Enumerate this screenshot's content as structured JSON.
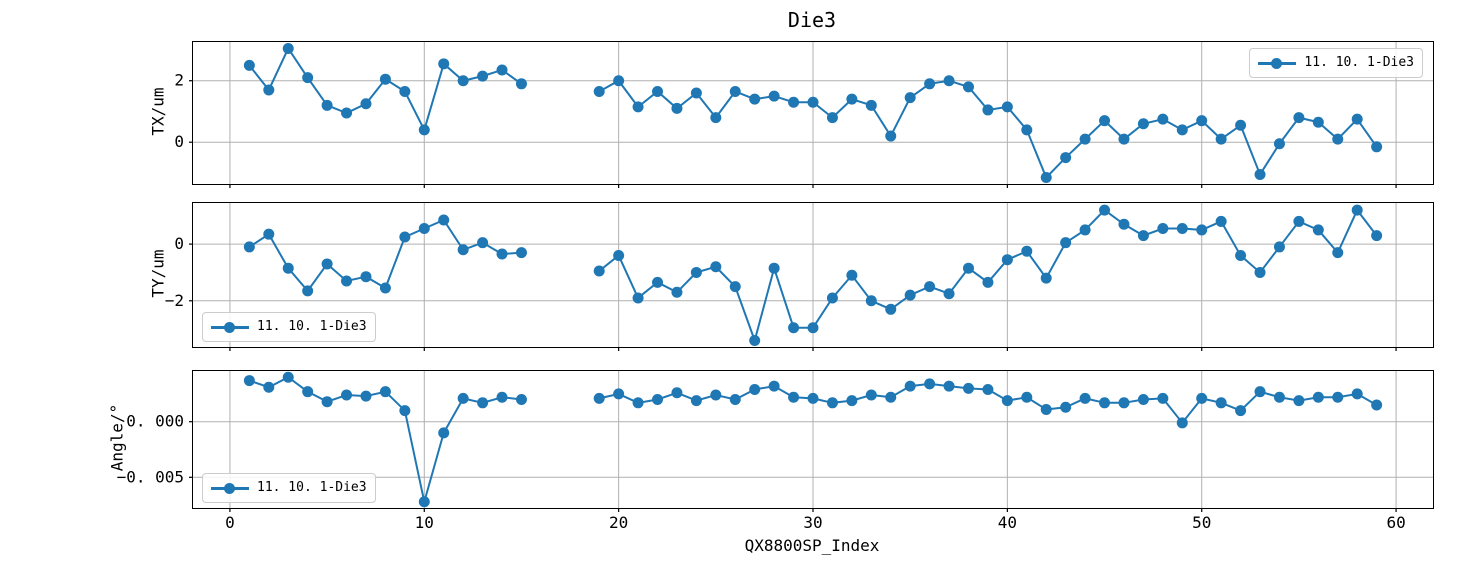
{
  "colors": {
    "line": "#1f77b4",
    "grid": "#b0b0b0",
    "spine": "#000000",
    "text": "#000000",
    "legend_border": "#cccccc"
  },
  "chart_data": {
    "type": "line",
    "title": "Die3",
    "xlabel": "QX8800SP_Index",
    "legend_label": "11. 10. 1-Die3",
    "grid": true,
    "marker": "circle",
    "xlim": [
      -1.9,
      61.9
    ],
    "xticks": [
      {
        "v": 0,
        "label": "0"
      },
      {
        "v": 10,
        "label": "10"
      },
      {
        "v": 20,
        "label": "20"
      },
      {
        "v": 30,
        "label": "30"
      },
      {
        "v": 40,
        "label": "40"
      },
      {
        "v": 50,
        "label": "50"
      },
      {
        "v": 60,
        "label": "60"
      }
    ],
    "x": [
      1,
      2,
      3,
      4,
      5,
      6,
      7,
      8,
      9,
      10,
      11,
      12,
      13,
      14,
      15,
      19,
      20,
      21,
      22,
      23,
      24,
      25,
      26,
      27,
      28,
      29,
      30,
      31,
      32,
      33,
      34,
      35,
      36,
      37,
      38,
      39,
      40,
      41,
      42,
      43,
      44,
      45,
      46,
      47,
      48,
      49,
      50,
      51,
      52,
      53,
      54,
      55,
      56,
      57,
      58,
      59
    ],
    "subplots": [
      {
        "id": "tx",
        "ylabel": "TX/um",
        "ylim": [
          -1.36,
          3.26
        ],
        "yticks": [
          {
            "v": 2,
            "label": "2"
          },
          {
            "v": 0,
            "label": "0"
          }
        ],
        "legend_position": "top-right",
        "values": [
          2.5,
          1.7,
          3.05,
          2.1,
          1.2,
          0.95,
          1.25,
          2.05,
          1.65,
          0.4,
          2.55,
          2.0,
          2.15,
          2.35,
          1.9,
          1.65,
          2.0,
          1.15,
          1.65,
          1.1,
          1.6,
          0.8,
          1.65,
          1.4,
          1.5,
          1.3,
          1.3,
          0.8,
          1.4,
          1.2,
          0.2,
          1.45,
          1.9,
          2.0,
          1.8,
          1.05,
          1.15,
          0.4,
          -1.15,
          -0.5,
          0.1,
          0.7,
          0.1,
          0.6,
          0.75,
          0.4,
          0.7,
          0.1,
          0.55,
          -1.05,
          -0.05,
          0.8,
          0.65,
          0.1,
          0.75,
          -0.15
        ]
      },
      {
        "id": "ty",
        "ylabel": "TY/um",
        "ylim": [
          -3.63,
          1.45
        ],
        "yticks": [
          {
            "v": 0,
            "label": "0"
          },
          {
            "v": -2,
            "label": "−2"
          }
        ],
        "legend_position": "bottom-left",
        "values": [
          -0.1,
          0.35,
          -0.85,
          -1.65,
          -0.7,
          -1.3,
          -1.15,
          -1.55,
          0.25,
          0.55,
          0.85,
          -0.2,
          0.05,
          -0.35,
          -0.3,
          -0.95,
          -0.4,
          -1.9,
          -1.35,
          -1.7,
          -1.0,
          -0.8,
          -1.5,
          -3.4,
          -0.85,
          -2.95,
          -2.95,
          -1.9,
          -1.1,
          -2.0,
          -2.3,
          -1.8,
          -1.5,
          -1.75,
          -0.85,
          -1.35,
          -0.55,
          -0.25,
          -1.2,
          0.05,
          0.5,
          1.2,
          0.7,
          0.3,
          0.55,
          0.55,
          0.5,
          0.8,
          -0.4,
          -1.0,
          -0.1,
          0.8,
          0.5,
          -0.3,
          1.2,
          0.3
        ]
      },
      {
        "id": "angle",
        "ylabel": "Angle/°",
        "ylim": [
          -0.00776,
          0.00456
        ],
        "yticks": [
          {
            "v": 0,
            "label": "0. 000"
          },
          {
            "v": -0.005,
            "label": "−0. 005"
          }
        ],
        "legend_position": "bottom-left",
        "values": [
          0.0037,
          0.0031,
          0.004,
          0.0027,
          0.0018,
          0.0024,
          0.0023,
          0.0027,
          0.001,
          -0.0072,
          -0.001,
          0.0021,
          0.0017,
          0.0022,
          0.002,
          0.0021,
          0.0025,
          0.0017,
          0.002,
          0.0026,
          0.0019,
          0.0024,
          0.002,
          0.0029,
          0.0032,
          0.0022,
          0.0021,
          0.0017,
          0.0019,
          0.0024,
          0.0022,
          0.0032,
          0.0034,
          0.0032,
          0.003,
          0.0029,
          0.0019,
          0.0022,
          0.0011,
          0.0013,
          0.0021,
          0.0017,
          0.0017,
          0.002,
          0.0021,
          -0.0001,
          0.0021,
          0.0017,
          0.001,
          0.0027,
          0.0022,
          0.0019,
          0.0022,
          0.0022,
          0.0025,
          0.0015
        ]
      }
    ]
  }
}
